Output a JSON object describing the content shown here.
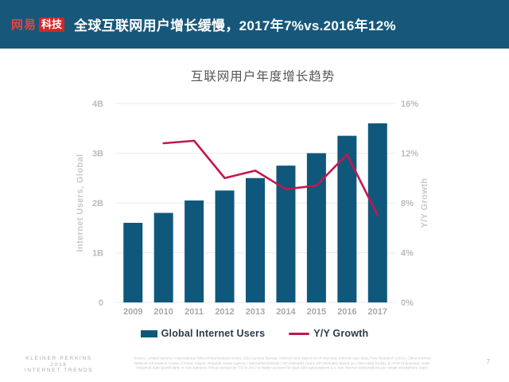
{
  "header": {
    "logo": {
      "brand": "网易",
      "sub": "科技"
    },
    "title": "全球互联网用户增长缓慢，2017年7%vs.2016年12%",
    "colors": {
      "band": "#17587a",
      "logo_text": "#e8423c",
      "logo_box": "#cf2a28"
    }
  },
  "chart_data": {
    "type": "bar+line",
    "title": "互联网用户年度增长趋势",
    "categories": [
      "2009",
      "2010",
      "2011",
      "2012",
      "2013",
      "2014",
      "2015",
      "2016",
      "2017"
    ],
    "series": [
      {
        "name": "Global Internet Users",
        "type": "bar",
        "unit": "B",
        "values": [
          1.6,
          1.8,
          2.05,
          2.25,
          2.5,
          2.75,
          3.0,
          3.35,
          3.6
        ],
        "color": "#0f587c"
      },
      {
        "name": "Y/Y Growth",
        "type": "line",
        "unit": "%",
        "values": [
          null,
          12.8,
          13.0,
          10.0,
          10.6,
          9.1,
          9.4,
          11.9,
          7.0
        ],
        "color": "#c11850"
      }
    ],
    "left_axis": {
      "label": "Internet Users, Global",
      "ticks": [
        "4B",
        "3B",
        "2B",
        "1B",
        "0"
      ],
      "min": 0,
      "max": 4
    },
    "right_axis": {
      "label": "Y/Y Growth",
      "ticks": [
        "16%",
        "12%",
        "8%",
        "4%",
        "0%"
      ],
      "min": 0,
      "max": 16
    },
    "grid": "horizontal",
    "legend_position": "bottom"
  },
  "footer": {
    "brand_lines": [
      "KLEINER PERKINS",
      "2018",
      "INTERNET TRENDS"
    ],
    "source_text": "Source: United Nations / International Telecommunications Union, USA Census Bureau. Internet user data is as of mid-year. Internet user data: Pew Research (USA), China Internet Network Information Center (China), Islamic Republic News Agency / InternetWorldStats / KP estimates (Iran). KP estimates based on IAMAI data (India), & APJII (Indonesia). Note: Historical data (particularly in Sub-Saharan Africa) revised by ITU in 2017 to better account for dual-SIM subscriptions (i.e. two Internet subscriptions per single smartphone user).",
    "page_number": "7"
  }
}
